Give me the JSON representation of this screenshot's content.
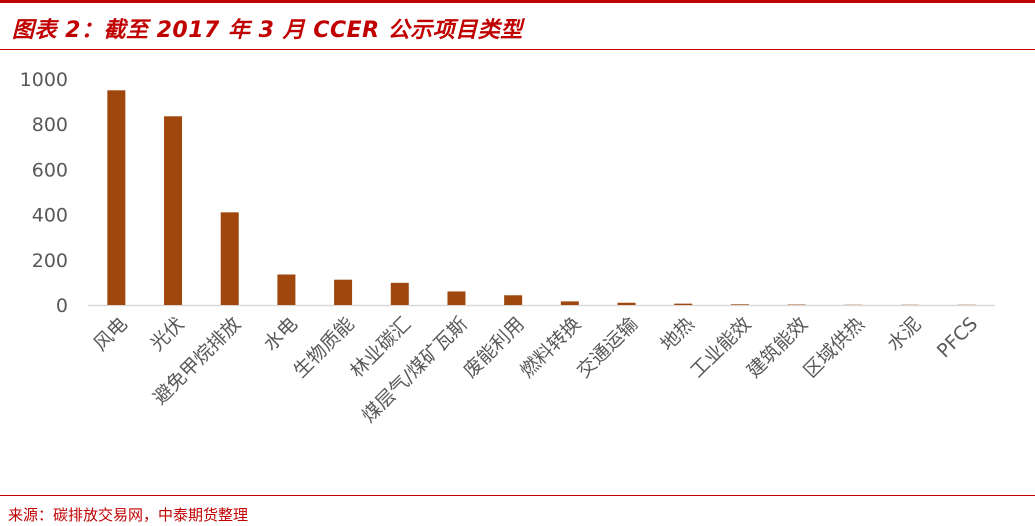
{
  "header": {
    "title": "图表 2：截至 2017 年 3 月 CCER 公示项目类型"
  },
  "footer": {
    "source": "来源：碳排放交易网，中泰期货整理"
  },
  "colors": {
    "accent": "#c00000",
    "bar": "#a0470d",
    "axis": "#d9d9d9",
    "tick_text": "#595959"
  },
  "chart_data": {
    "type": "bar",
    "categories": [
      "风电",
      "光伏",
      "避免甲烷排放",
      "水电",
      "生物质能",
      "林业碳汇",
      "煤层气/煤矿瓦斯",
      "废能利用",
      "燃料转换",
      "交通运输",
      "地热",
      "工业能效",
      "建筑能效",
      "区域供热",
      "水泥",
      "PFCS"
    ],
    "values": [
      950,
      835,
      410,
      135,
      112,
      98,
      60,
      43,
      16,
      10,
      6,
      3,
      2,
      1,
      1,
      1
    ],
    "yticks": [
      0,
      200,
      400,
      600,
      800,
      1000
    ],
    "ylim": [
      0,
      1000
    ],
    "grid": false,
    "legend": "none"
  }
}
